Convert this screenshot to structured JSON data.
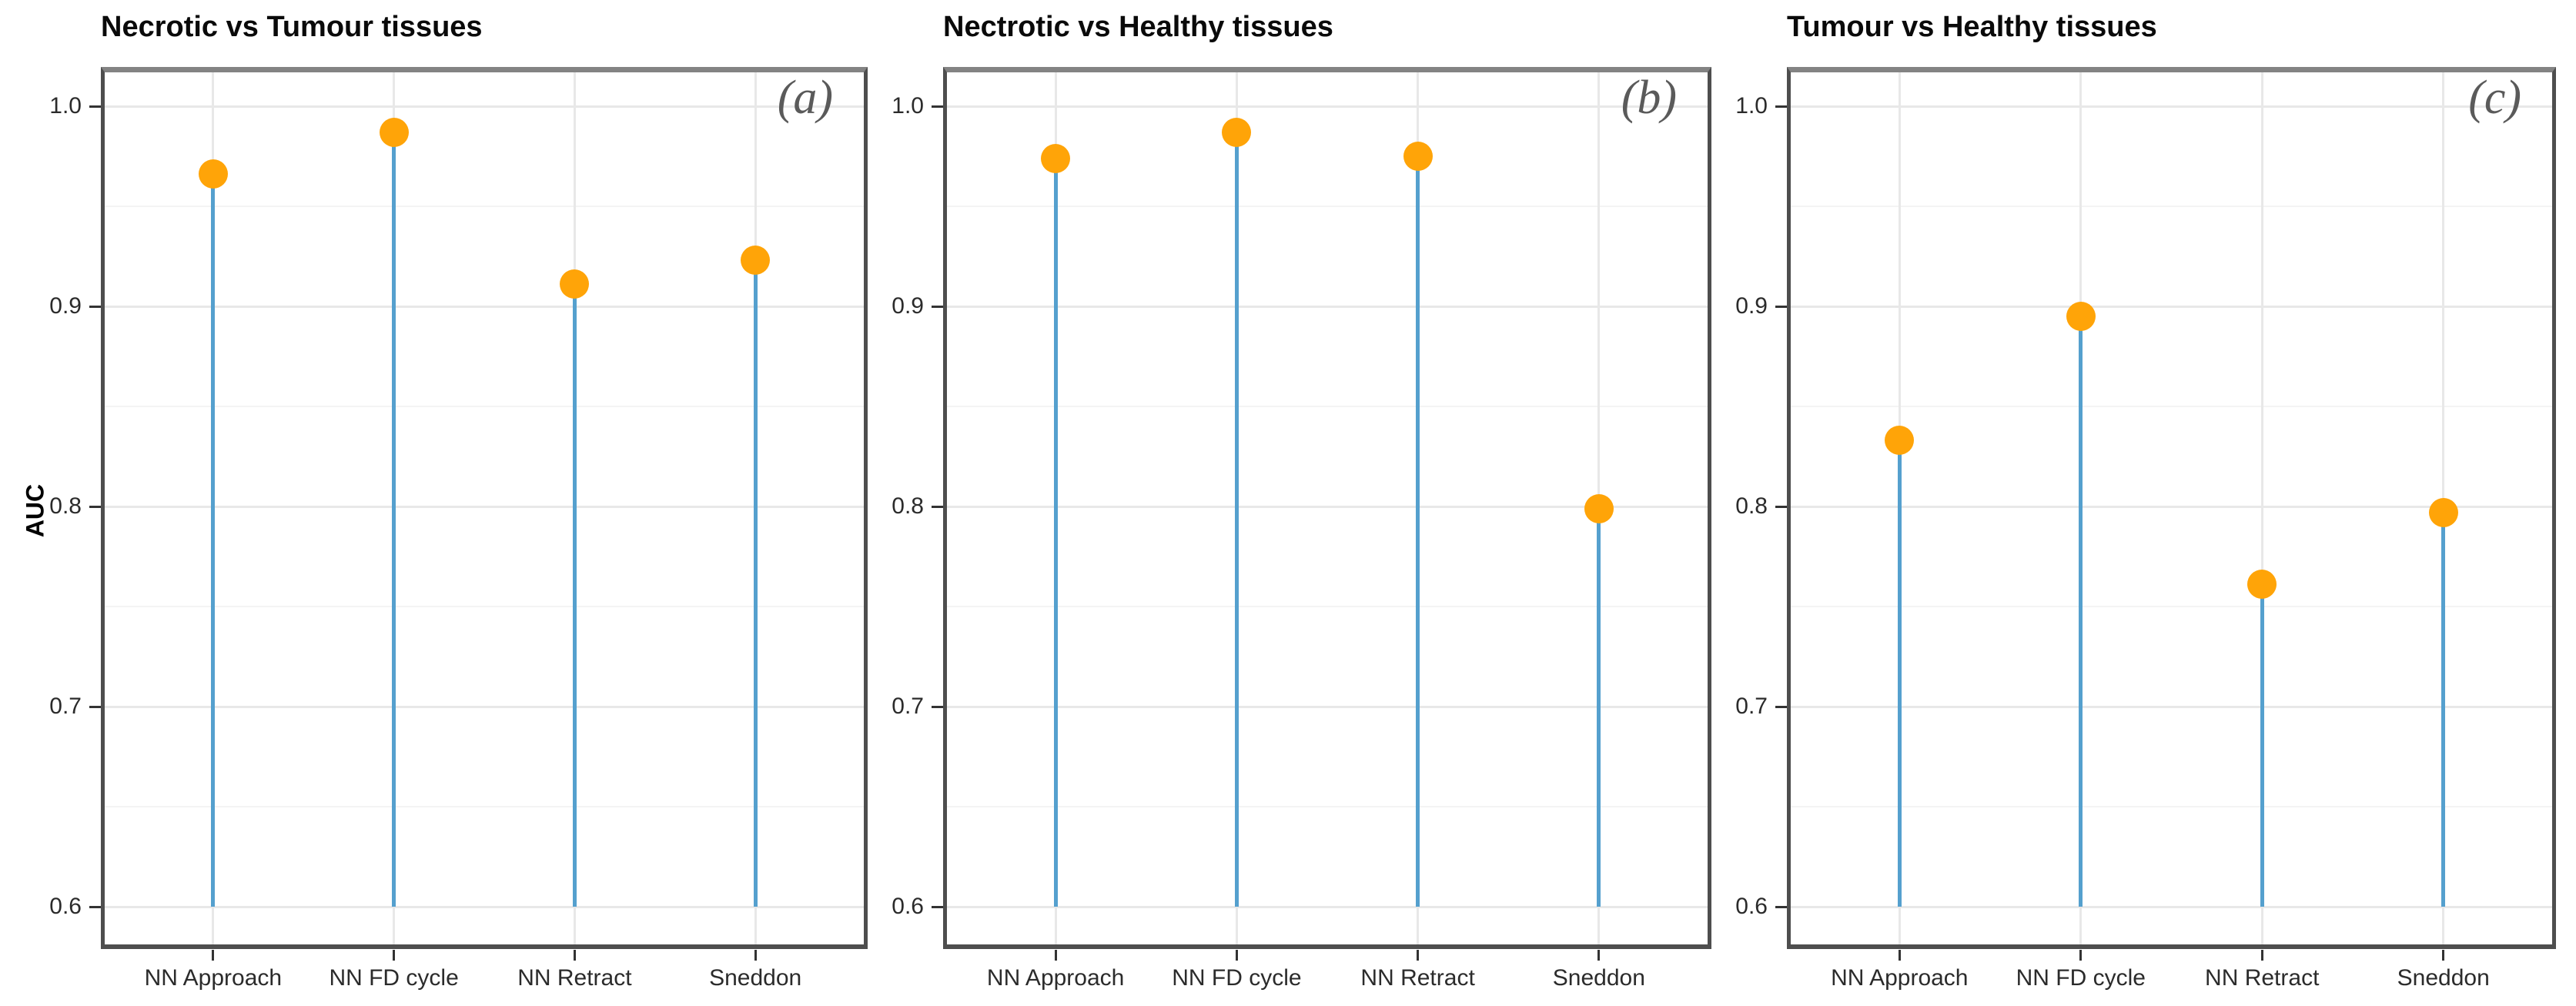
{
  "figure": {
    "ylabel": "AUC"
  },
  "colors": {
    "dot": "#FFA408",
    "stem": "#55A0CE",
    "grid_major": "#E8E8E8",
    "grid_minor": "#F4F4F4",
    "border_side": "#4E4E4E",
    "border_top": "#838383",
    "title_text": "#0A0A0A",
    "tick_text": "#2B2B2B",
    "panel_label_text": "#5A5A5A",
    "tick_mark": "#333333"
  },
  "chart_data": [
    {
      "type": "scatter",
      "style": "lollipop",
      "title": "Necrotic vs Tumour tissues",
      "panel_label": "(a)",
      "xlabel": "",
      "ylabel": "AUC",
      "categories": [
        "NN Approach",
        "NN FD cycle",
        "NN Retract",
        "Sneddon"
      ],
      "values": [
        0.966,
        0.987,
        0.911,
        0.923
      ],
      "stem_base": 0.6,
      "yticks": [
        1.0,
        0.9,
        0.8,
        0.7,
        0.6
      ],
      "ytick_labels": [
        "1.0",
        "0.9",
        "0.8",
        "0.7",
        "0.6"
      ],
      "minor_yticks": [
        0.95,
        0.85,
        0.75,
        0.65
      ],
      "ylim": [
        0.578,
        1.02
      ],
      "grid": true,
      "legend": false
    },
    {
      "type": "scatter",
      "style": "lollipop",
      "title": "Nectrotic vs Healthy tissues",
      "panel_label": "(b)",
      "xlabel": "",
      "ylabel": "AUC",
      "categories": [
        "NN Approach",
        "NN FD cycle",
        "NN Retract",
        "Sneddon"
      ],
      "values": [
        0.974,
        0.987,
        0.975,
        0.799
      ],
      "stem_base": 0.6,
      "yticks": [
        1.0,
        0.9,
        0.8,
        0.7,
        0.6
      ],
      "ytick_labels": [
        "1.0",
        "0.9",
        "0.8",
        "0.7",
        "0.6"
      ],
      "minor_yticks": [
        0.95,
        0.85,
        0.75,
        0.65
      ],
      "ylim": [
        0.578,
        1.02
      ],
      "grid": true,
      "legend": false
    },
    {
      "type": "scatter",
      "style": "lollipop",
      "title": "Tumour vs Healthy tissues",
      "panel_label": "(c)",
      "xlabel": "",
      "ylabel": "AUC",
      "categories": [
        "NN Approach",
        "NN FD cycle",
        "NN Retract",
        "Sneddon"
      ],
      "values": [
        0.833,
        0.895,
        0.761,
        0.797
      ],
      "stem_base": 0.6,
      "yticks": [
        1.0,
        0.9,
        0.8,
        0.7,
        0.6
      ],
      "ytick_labels": [
        "1.0",
        "0.9",
        "0.8",
        "0.7",
        "0.6"
      ],
      "minor_yticks": [
        0.95,
        0.85,
        0.75,
        0.65
      ],
      "ylim": [
        0.578,
        1.02
      ],
      "grid": true,
      "legend": false
    }
  ]
}
